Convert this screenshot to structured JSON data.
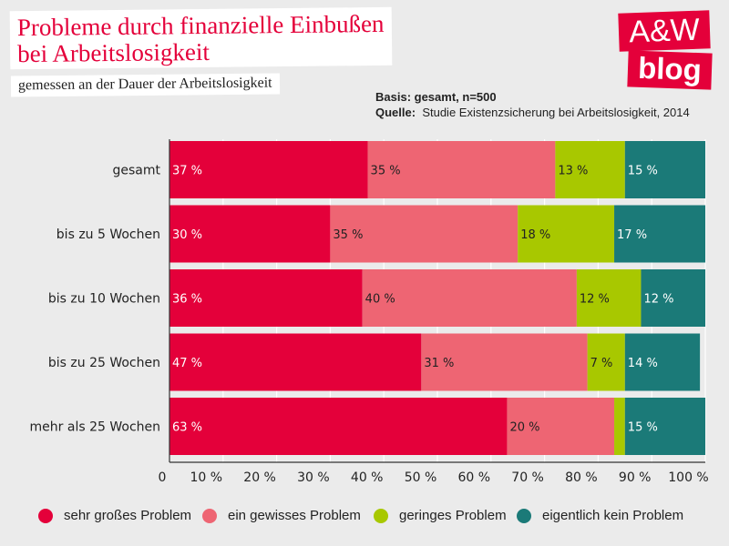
{
  "header": {
    "title_line1": "Probleme durch finanzielle Einbußen",
    "title_line2": "bei Arbeitslosigkeit",
    "subtitle": "gemessen an der Dauer der Arbeitslosigkeit",
    "basis_label": "Basis: gesamt, n=500",
    "source_label": "Quelle:",
    "source_text": "Studie Existenzsicherung bei Arbeitslosigkeit, 2014"
  },
  "logo": {
    "line1": "A&W",
    "line2": "blog"
  },
  "colors": {
    "background": "#ebebeb",
    "accent": "#e4003a"
  },
  "chart_data": {
    "type": "bar",
    "orientation": "horizontal",
    "stacked": true,
    "categories": [
      "gesamt",
      "bis zu 5 Wochen",
      "bis zu 10 Wochen",
      "bis zu 25 Wochen",
      "mehr als 25 Wochen"
    ],
    "series": [
      {
        "name": "sehr großes Problem",
        "color": "#e4003a",
        "values": [
          37,
          30,
          36,
          47,
          63
        ],
        "labels": [
          "37 %",
          "30 %",
          "36 %",
          "47 %",
          "63 %"
        ]
      },
      {
        "name": "ein gewisses Problem",
        "color": "#ee6573",
        "values": [
          35,
          35,
          40,
          31,
          20
        ],
        "labels": [
          "35 %",
          "35 %",
          "40 %",
          "31 %",
          "20 %"
        ]
      },
      {
        "name": "geringes Problem",
        "color": "#a8c800",
        "values": [
          13,
          18,
          12,
          7,
          2
        ],
        "labels": [
          "13 %",
          "18 %",
          "12 %",
          "7 %",
          ""
        ]
      },
      {
        "name": "eigentlich kein Problem",
        "color": "#1b7a78",
        "values": [
          15,
          17,
          12,
          14,
          15
        ],
        "labels": [
          "15 %",
          "17 %",
          "12 %",
          "14 %",
          "15 %"
        ]
      }
    ],
    "x_ticks": [
      "0",
      "10 %",
      "20 %",
      "30 %",
      "40 %",
      "50 %",
      "60 %",
      "70 %",
      "80 %",
      "90 %",
      "100 %"
    ],
    "xlim": [
      0,
      100
    ],
    "grid": true,
    "legend_position": "bottom"
  }
}
